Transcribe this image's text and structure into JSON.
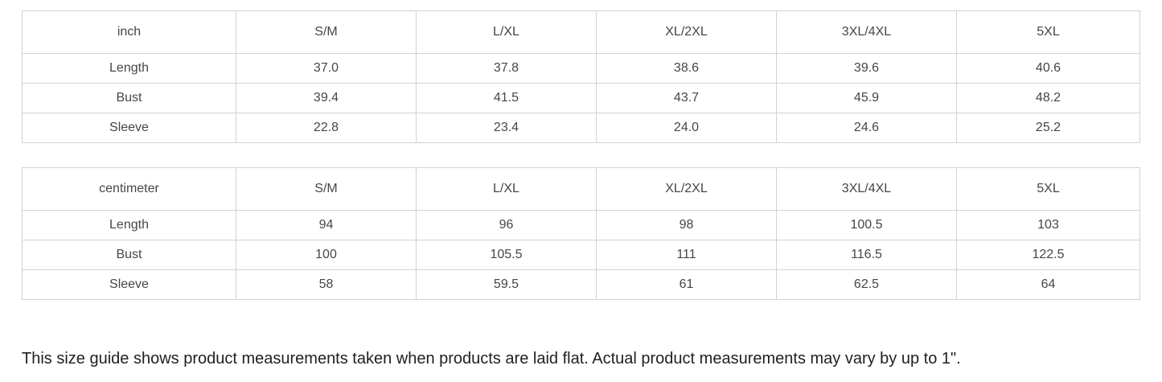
{
  "size_guide": {
    "tables": [
      {
        "unit": "inch",
        "columns": [
          "S/M",
          "L/XL",
          "XL/2XL",
          "3XL/4XL",
          "5XL"
        ],
        "rows": [
          {
            "label": "Length",
            "values": [
              "37.0",
              "37.8",
              "38.6",
              "39.6",
              "40.6"
            ]
          },
          {
            "label": "Bust",
            "values": [
              "39.4",
              "41.5",
              "43.7",
              "45.9",
              "48.2"
            ]
          },
          {
            "label": "Sleeve",
            "values": [
              "22.8",
              "23.4",
              "24.0",
              "24.6",
              "25.2"
            ]
          }
        ]
      },
      {
        "unit": "centimeter",
        "columns": [
          "S/M",
          "L/XL",
          "XL/2XL",
          "3XL/4XL",
          "5XL"
        ],
        "rows": [
          {
            "label": "Length",
            "values": [
              "94",
              "96",
              "98",
              "100.5",
              "103"
            ]
          },
          {
            "label": "Bust",
            "values": [
              "100",
              "105.5",
              "111",
              "116.5",
              "122.5"
            ]
          },
          {
            "label": "Sleeve",
            "values": [
              "58",
              "59.5",
              "61",
              "62.5",
              "64"
            ]
          }
        ]
      }
    ],
    "note": "This size guide shows product measurements taken when products are laid flat. Actual product measurements may vary by up to 1\"."
  },
  "colors": {
    "table_border": "#d2d2d2",
    "table_text": "#464646",
    "note_text": "#1f1f1f",
    "background": "#ffffff"
  }
}
